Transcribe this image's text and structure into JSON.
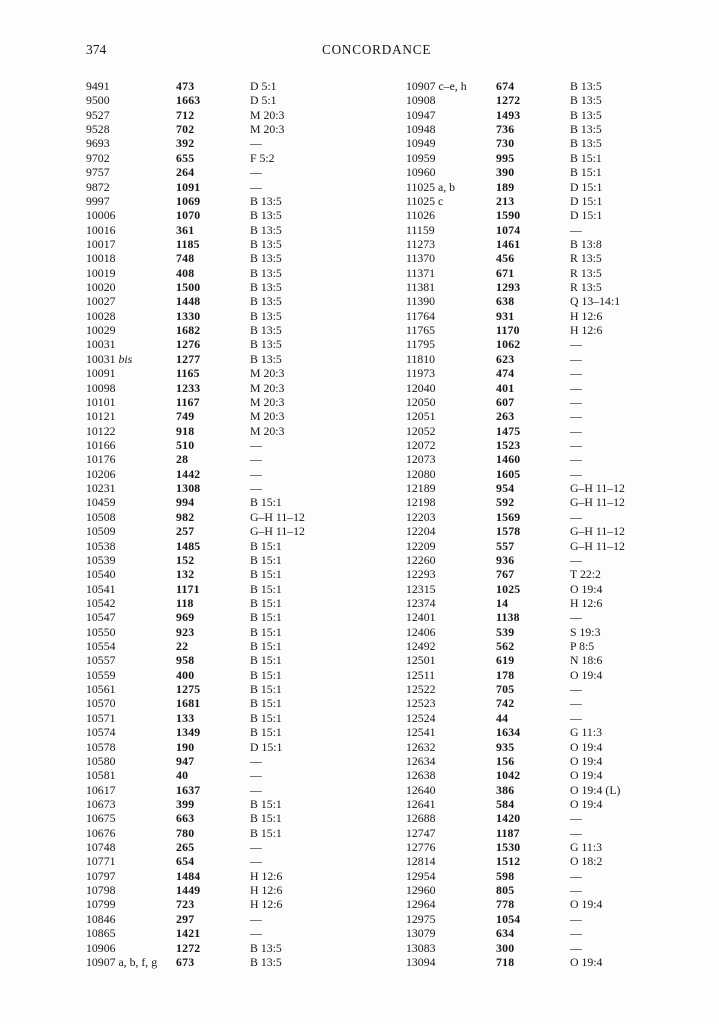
{
  "header": {
    "page_number": "374",
    "title": "CONCORDANCE"
  },
  "concordance": {
    "column_roles": [
      "entry-number",
      "catalogue-number",
      "reference"
    ],
    "columns": [
      {
        "side": "left",
        "rows": [
          [
            "9491",
            "473",
            "D 5:1"
          ],
          [
            "9500",
            "1663",
            "D 5:1"
          ],
          [
            "9527",
            "712",
            "M 20:3"
          ],
          [
            "9528",
            "702",
            "M 20:3"
          ],
          [
            "9693",
            "392",
            "—"
          ],
          [
            "9702",
            "655",
            "F 5:2"
          ],
          [
            "9757",
            "264",
            "—"
          ],
          [
            "9872",
            "1091",
            "—"
          ],
          [
            "9997",
            "1069",
            "B 13:5"
          ],
          [
            "10006",
            "1070",
            "B 13:5"
          ],
          [
            "10016",
            "361",
            "B 13:5"
          ],
          [
            "10017",
            "1185",
            "B 13:5"
          ],
          [
            "10018",
            "748",
            "B 13:5"
          ],
          [
            "10019",
            "408",
            "B 13:5"
          ],
          [
            "10020",
            "1500",
            "B 13:5"
          ],
          [
            "10027",
            "1448",
            "B 13:5"
          ],
          [
            "10028",
            "1330",
            "B 13:5"
          ],
          [
            "10029",
            "1682",
            "B 13:5"
          ],
          [
            "10031",
            "1276",
            "B 13:5"
          ],
          [
            "10031 bis",
            "1277",
            "B 13:5"
          ],
          [
            "10091",
            "1165",
            "M 20:3"
          ],
          [
            "10098",
            "1233",
            "M 20:3"
          ],
          [
            "10101",
            "1167",
            "M 20:3"
          ],
          [
            "10121",
            "749",
            "M 20:3"
          ],
          [
            "10122",
            "918",
            "M 20:3"
          ],
          [
            "10166",
            "510",
            "—"
          ],
          [
            "10176",
            "28",
            "—"
          ],
          [
            "10206",
            "1442",
            "—"
          ],
          [
            "10231",
            "1308",
            "—"
          ],
          [
            "10459",
            "994",
            "B 15:1"
          ],
          [
            "10508",
            "982",
            "G–H 11–12"
          ],
          [
            "10509",
            "257",
            "G–H 11–12"
          ],
          [
            "10538",
            "1485",
            "B 15:1"
          ],
          [
            "10539",
            "152",
            "B 15:1"
          ],
          [
            "10540",
            "132",
            "B 15:1"
          ],
          [
            "10541",
            "1171",
            "B 15:1"
          ],
          [
            "10542",
            "118",
            "B 15:1"
          ],
          [
            "10547",
            "969",
            "B 15:1"
          ],
          [
            "10550",
            "923",
            "B 15:1"
          ],
          [
            "10554",
            "22",
            "B 15:1"
          ],
          [
            "10557",
            "958",
            "B 15:1"
          ],
          [
            "10559",
            "400",
            "B 15:1"
          ],
          [
            "10561",
            "1275",
            "B 15:1"
          ],
          [
            "10570",
            "1681",
            "B 15:1"
          ],
          [
            "10571",
            "133",
            "B 15:1"
          ],
          [
            "10574",
            "1349",
            "B 15:1"
          ],
          [
            "10578",
            "190",
            "D 15:1"
          ],
          [
            "10580",
            "947",
            "—"
          ],
          [
            "10581",
            "40",
            "—"
          ],
          [
            "10617",
            "1637",
            "—"
          ],
          [
            "10673",
            "399",
            "B 15:1"
          ],
          [
            "10675",
            "663",
            "B 15:1"
          ],
          [
            "10676",
            "780",
            "B 15:1"
          ],
          [
            "10748",
            "265",
            "—"
          ],
          [
            "10771",
            "654",
            "—"
          ],
          [
            "10797",
            "1484",
            "H 12:6"
          ],
          [
            "10798",
            "1449",
            "H 12:6"
          ],
          [
            "10799",
            "723",
            "H 12:6"
          ],
          [
            "10846",
            "297",
            "—"
          ],
          [
            "10865",
            "1421",
            "—"
          ],
          [
            "10906",
            "1272",
            "B 13:5"
          ],
          [
            "10907 a, b, f, g",
            "673",
            "B 13:5"
          ]
        ]
      },
      {
        "side": "right",
        "rows": [
          [
            "10907 c–e, h",
            "674",
            "B 13:5"
          ],
          [
            "10908",
            "1272",
            "B 13:5"
          ],
          [
            "10947",
            "1493",
            "B 13:5"
          ],
          [
            "10948",
            "736",
            "B 13:5"
          ],
          [
            "10949",
            "730",
            "B 13:5"
          ],
          [
            "10959",
            "995",
            "B 15:1"
          ],
          [
            "10960",
            "390",
            "B 15:1"
          ],
          [
            "11025 a, b",
            "189",
            "D 15:1"
          ],
          [
            "11025 c",
            "213",
            "D 15:1"
          ],
          [
            "11026",
            "1590",
            "D 15:1"
          ],
          [
            "11159",
            "1074",
            "—"
          ],
          [
            "11273",
            "1461",
            "B 13:8"
          ],
          [
            "11370",
            "456",
            "R 13:5"
          ],
          [
            "11371",
            "671",
            "R 13:5"
          ],
          [
            "11381",
            "1293",
            "R 13:5"
          ],
          [
            "11390",
            "638",
            "Q 13–14:1"
          ],
          [
            "11764",
            "931",
            "H 12:6"
          ],
          [
            "11765",
            "1170",
            "H 12:6"
          ],
          [
            "11795",
            "1062",
            "—"
          ],
          [
            "11810",
            "623",
            "—"
          ],
          [
            "11973",
            "474",
            "—"
          ],
          [
            "12040",
            "401",
            "—"
          ],
          [
            "12050",
            "607",
            "—"
          ],
          [
            "12051",
            "263",
            "—"
          ],
          [
            "12052",
            "1475",
            "—"
          ],
          [
            "12072",
            "1523",
            "—"
          ],
          [
            "12073",
            "1460",
            "—"
          ],
          [
            "12080",
            "1605",
            "—"
          ],
          [
            "12189",
            "954",
            "G–H 11–12"
          ],
          [
            "12198",
            "592",
            "G–H 11–12"
          ],
          [
            "12203",
            "1569",
            "—"
          ],
          [
            "12204",
            "1578",
            "G–H 11–12"
          ],
          [
            "12209",
            "557",
            "G–H 11–12"
          ],
          [
            "12260",
            "936",
            "—"
          ],
          [
            "12293",
            "767",
            "T 22:2"
          ],
          [
            "12315",
            "1025",
            "O 19:4"
          ],
          [
            "12374",
            "14",
            "H 12:6"
          ],
          [
            "12401",
            "1138",
            "—"
          ],
          [
            "12406",
            "539",
            "S 19:3"
          ],
          [
            "12492",
            "562",
            "P 8:5"
          ],
          [
            "12501",
            "619",
            "N 18:6"
          ],
          [
            "12511",
            "178",
            "O 19:4"
          ],
          [
            "12522",
            "705",
            "—"
          ],
          [
            "12523",
            "742",
            "—"
          ],
          [
            "12524",
            "44",
            "—"
          ],
          [
            "12541",
            "1634",
            "G 11:3"
          ],
          [
            "12632",
            "935",
            "O 19:4"
          ],
          [
            "12634",
            "156",
            "O 19:4"
          ],
          [
            "12638",
            "1042",
            "O 19:4"
          ],
          [
            "12640",
            "386",
            "O 19:4 (L)"
          ],
          [
            "12641",
            "584",
            "O 19:4"
          ],
          [
            "12688",
            "1420",
            "—"
          ],
          [
            "12747",
            "1187",
            "—"
          ],
          [
            "12776",
            "1530",
            "G 11:3"
          ],
          [
            "12814",
            "1512",
            "O 18:2"
          ],
          [
            "12954",
            "598",
            "—"
          ],
          [
            "12960",
            "805",
            "—"
          ],
          [
            "12964",
            "778",
            "O 19:4"
          ],
          [
            "12975",
            "1054",
            "—"
          ],
          [
            "13079",
            "634",
            "—"
          ],
          [
            "13083",
            "300",
            "—"
          ],
          [
            "13094",
            "718",
            "O 19:4"
          ]
        ]
      }
    ]
  }
}
